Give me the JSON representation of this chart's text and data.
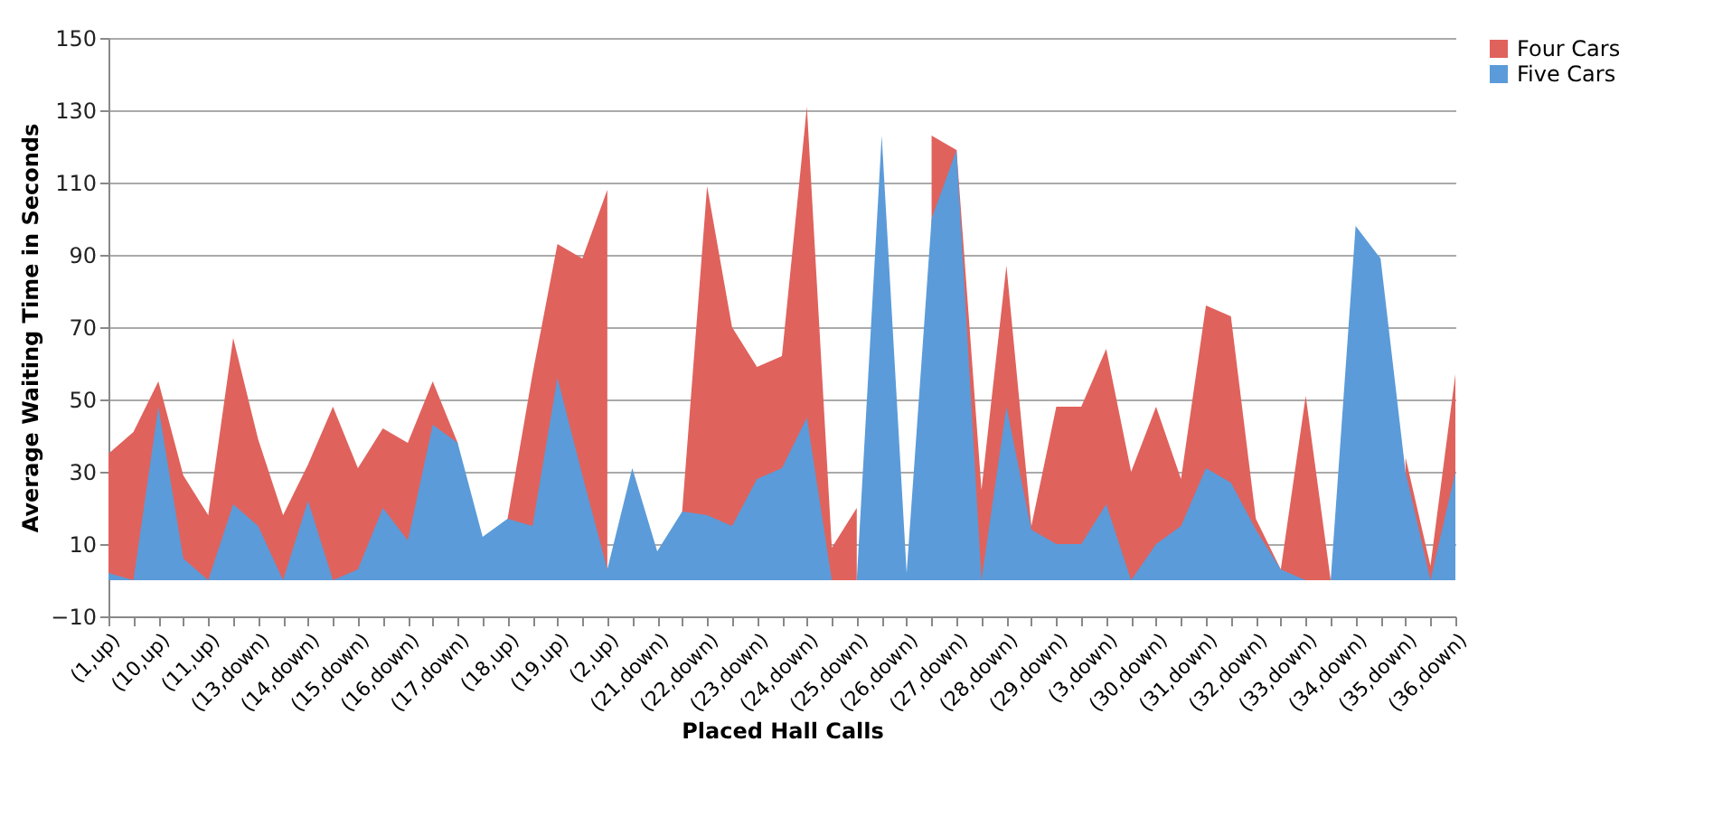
{
  "chart_data": {
    "type": "area",
    "xlabel": "Placed Hall Calls",
    "ylabel": "Average Waiting Time in Seconds",
    "categories": [
      "(1,up)",
      null,
      "(10,up)",
      null,
      "(11,up)",
      null,
      "(13,down)",
      null,
      "(14,down)",
      null,
      "(15,down)",
      null,
      "(16,down)",
      null,
      "(17,down)",
      null,
      "(18,up)",
      null,
      "(19,up)",
      null,
      "(2,up)",
      null,
      "(21,down)",
      null,
      "(22,down)",
      null,
      "(23,down)",
      null,
      "(24,down)",
      null,
      "(25,down)",
      null,
      "(26,down)",
      null,
      "(27,down)",
      null,
      "(28,down)",
      null,
      "(29,down)",
      null,
      "(3,down)",
      null,
      "(30,down)",
      null,
      "(31,down)",
      null,
      "(32,down)",
      null,
      "(33,down)",
      null,
      "(34,down)",
      null,
      "(35,down)",
      null,
      "(36,down)"
    ],
    "series": [
      {
        "name": "Four Cars",
        "color": "#e0625c",
        "values": [
          35,
          41,
          55,
          29,
          18,
          67,
          39,
          18,
          32,
          48,
          31,
          42,
          38,
          55,
          38,
          null,
          17,
          57,
          93,
          89,
          108,
          null,
          null,
          19,
          109,
          70,
          59,
          62,
          131,
          9,
          20,
          null,
          null,
          123,
          119,
          25,
          87,
          15,
          48,
          48,
          64,
          30,
          48,
          28,
          76,
          73,
          17,
          3,
          51,
          0,
          null,
          null,
          34,
          4,
          57
        ]
      },
      {
        "name": "Five Cars",
        "color": "#5b9bd9",
        "values": [
          2,
          0,
          48,
          6,
          0,
          21,
          15,
          0,
          22,
          0,
          3,
          20,
          11,
          43,
          38,
          12,
          17,
          15,
          56,
          29,
          3,
          31,
          8,
          19,
          18,
          15,
          28,
          31,
          45,
          0,
          0,
          123,
          2,
          100,
          119,
          0,
          48,
          14,
          10,
          10,
          21,
          0,
          10,
          15,
          31,
          27,
          14,
          3,
          0,
          0,
          98,
          89,
          30,
          0,
          30
        ]
      }
    ],
    "ylim": [
      -10,
      150
    ],
    "yticks": [
      -10,
      10,
      30,
      50,
      70,
      90,
      110,
      130,
      150
    ],
    "grid": "y",
    "legend": "right"
  }
}
